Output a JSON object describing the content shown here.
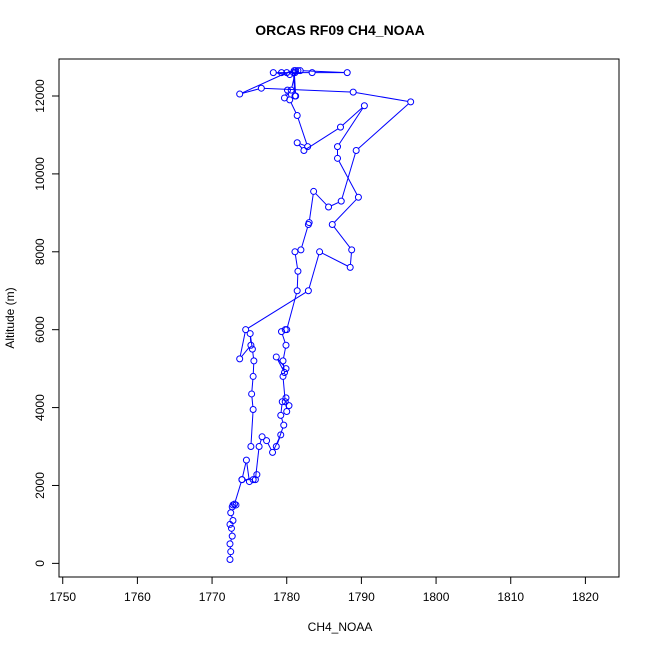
{
  "chart_data": {
    "type": "line",
    "title": "ORCAS RF09 CH4_NOAA",
    "xlabel": "CH4_NOAA",
    "ylabel": "Altitude (m)",
    "xlim": [
      1749.5,
      1824.5
    ],
    "ylim": [
      -350,
      12950
    ],
    "x_ticks": [
      1750,
      1760,
      1770,
      1780,
      1790,
      1800,
      1810,
      1820
    ],
    "y_ticks": [
      0,
      2000,
      4000,
      6000,
      8000,
      10000,
      12000
    ],
    "grid": false,
    "legend": "none",
    "marker": "open-circle",
    "color": "#0000ff",
    "series": [
      {
        "x": [
          1772.4,
          1772.5,
          1772.4,
          1772.7,
          1772.6,
          1772.4,
          1772.8,
          1772.5,
          1772.7,
          1772.8,
          1773.2,
          1773.0,
          1774.0,
          1774.6,
          1775.0,
          1774.0,
          1775.5,
          1776.0,
          1775.8,
          1776.3,
          1776.7,
          1777.3,
          1778.1,
          1779.2,
          1778.6,
          1779.6,
          1779.2,
          1779.4,
          1779.9,
          1780.0,
          1780.3,
          1779.8,
          1779.5,
          1779.9,
          1778.6,
          1779.7,
          1779.5,
          1779.9,
          1779.3,
          1779.8,
          1780.0,
          1781.4,
          1781.5,
          1781.1,
          1781.9,
          1782.9,
          1783.0,
          1783.6,
          1785.6,
          1787.3,
          1789.3,
          1796.6,
          1788.9,
          1776.6,
          1773.7,
          1780.0,
          1778.2,
          1780.4,
          1779.3,
          1783.4,
          1788.1,
          1781.8,
          1781.5,
          1781.0,
          1781.2,
          1781.1,
          1780.9,
          1781.1,
          1781.2,
          1780.6,
          1779.7,
          1780.1,
          1780.4,
          1781.4,
          1782.8,
          1781.4,
          1782.3,
          1787.2,
          1790.4,
          1786.8,
          1786.8,
          1789.6,
          1786.1,
          1788.7,
          1788.5,
          1784.4,
          1782.9,
          1774.5,
          1773.7,
          1775.2,
          1775.1,
          1775.4,
          1775.6,
          1775.5,
          1775.3,
          1775.5,
          1775.2
        ],
        "y": [
          100,
          300,
          500,
          700,
          900,
          1000,
          1100,
          1300,
          1450,
          1500,
          1500,
          1520,
          2150,
          2650,
          2100,
          2150,
          2150,
          2280,
          2150,
          3000,
          3250,
          3150,
          2850,
          3300,
          3000,
          3550,
          3800,
          4150,
          4250,
          3900,
          4050,
          4150,
          4800,
          5000,
          5300,
          4900,
          5200,
          5600,
          5950,
          6000,
          6000,
          7000,
          7500,
          8000,
          8050,
          8700,
          8750,
          9550,
          9150,
          9300,
          10600,
          11850,
          12100,
          12200,
          12050,
          12600,
          12600,
          12550,
          12600,
          12600,
          12600,
          12650,
          12650,
          12650,
          12000,
          12000,
          12600,
          12600,
          12650,
          12150,
          11950,
          12150,
          11900,
          11500,
          10700,
          10800,
          10600,
          11200,
          11750,
          10700,
          10400,
          9400,
          8700,
          8050,
          7600,
          8000,
          7000,
          6000,
          5250,
          5600,
          5900,
          5500,
          5200,
          4800,
          4350,
          3950,
          3000
        ]
      }
    ]
  }
}
